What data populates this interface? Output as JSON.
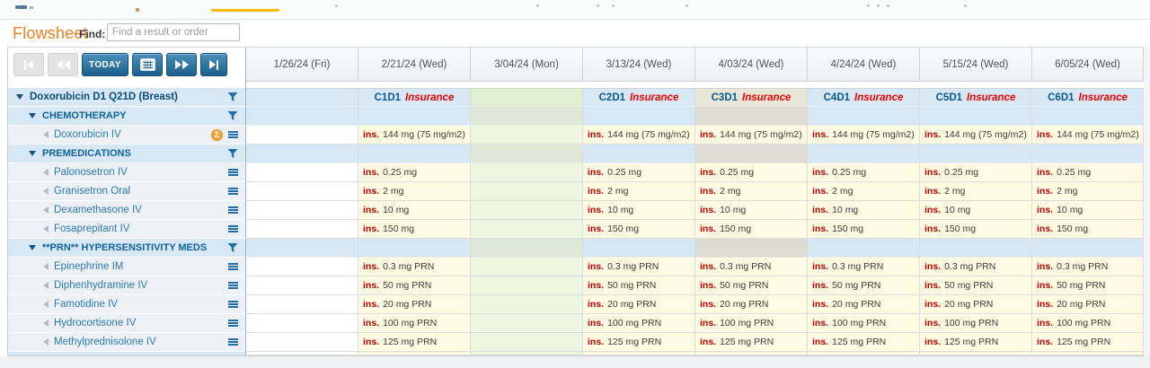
{
  "top_bar": {
    "active_tab_underline_color": "#f7bb00"
  },
  "flowsheet_header": {
    "title": "Flowsheet",
    "find_label": "Find:",
    "find_placeholder": "Find a result or order"
  },
  "nav_toolbar": {
    "today_label": "TODAY"
  },
  "table": {
    "ins_label": "ins.",
    "cycle_note": "Insurance",
    "columns": [
      {
        "date": "1/26/24 (Fri)",
        "cycle": null,
        "kind": "empty"
      },
      {
        "date": "2/21/24 (Wed)",
        "cycle": "C1D1",
        "kind": "data"
      },
      {
        "date": "3/04/24 (Mon)",
        "cycle": null,
        "kind": "green"
      },
      {
        "date": "3/13/24 (Wed)",
        "cycle": "C2D1",
        "kind": "data"
      },
      {
        "date": "4/03/24 (Wed)",
        "cycle": "C3D1",
        "kind": "data",
        "highlight": true
      },
      {
        "date": "4/24/24 (Wed)",
        "cycle": "C4D1",
        "kind": "data"
      },
      {
        "date": "5/15/24 (Wed)",
        "cycle": "C5D1",
        "kind": "data"
      },
      {
        "date": "6/05/24 (Wed)",
        "cycle": "C6D1",
        "kind": "data"
      }
    ],
    "rows": [
      {
        "type": "plan",
        "label": "Doxorubicin D1 Q21D (Breast)"
      },
      {
        "type": "section",
        "label": "CHEMOTHERAPY"
      },
      {
        "type": "drug",
        "label": "Doxorubicin IV",
        "badge": "Σ",
        "value": "144 mg (75 mg/m2)"
      },
      {
        "type": "section",
        "label": "PREMEDICATIONS"
      },
      {
        "type": "drug",
        "label": "Palonosetron IV",
        "value": "0.25 mg"
      },
      {
        "type": "drug",
        "label": "Granisetron Oral",
        "value": "2 mg"
      },
      {
        "type": "drug",
        "label": "Dexamethasone IV",
        "value": "10 mg"
      },
      {
        "type": "drug",
        "label": "Fosaprepitant IV",
        "value": "150 mg"
      },
      {
        "type": "section",
        "label": "**PRN** HYPERSENSITIVITY MEDS"
      },
      {
        "type": "drug",
        "label": "Epinephrine IM",
        "value": "0.3 mg PRN"
      },
      {
        "type": "drug",
        "label": "Diphenhydramine IV",
        "value": "50 mg PRN"
      },
      {
        "type": "drug",
        "label": "Famotidine IV",
        "value": "20 mg PRN"
      },
      {
        "type": "drug",
        "label": "Hydrocortisone IV",
        "value": "100 mg PRN"
      },
      {
        "type": "drug",
        "label": "Methylprednisolone IV",
        "value": "125 mg PRN"
      }
    ]
  },
  "colors": {
    "accent_orange": "#f07f1f",
    "tab_underline_yellow": "#f7bb00",
    "section_row_blue": "#d7e7f4",
    "data_cell_yellow": "#fffbe2",
    "green_column": "#ecf6e0",
    "highlight_column_beige": "#e8e6d6",
    "highlight_column_gray": "#dcdcd3",
    "ins_red": "#c40000",
    "insurance_red": "#ee0000",
    "cycle_blue": "#0a5a8f",
    "sidebar_link_blue": "#2a7ab1",
    "nav_button_blue": "#1c5e8d",
    "disabled_button_gray": "#e3e3e3",
    "sigma_badge_orange": "#f3a43d"
  }
}
